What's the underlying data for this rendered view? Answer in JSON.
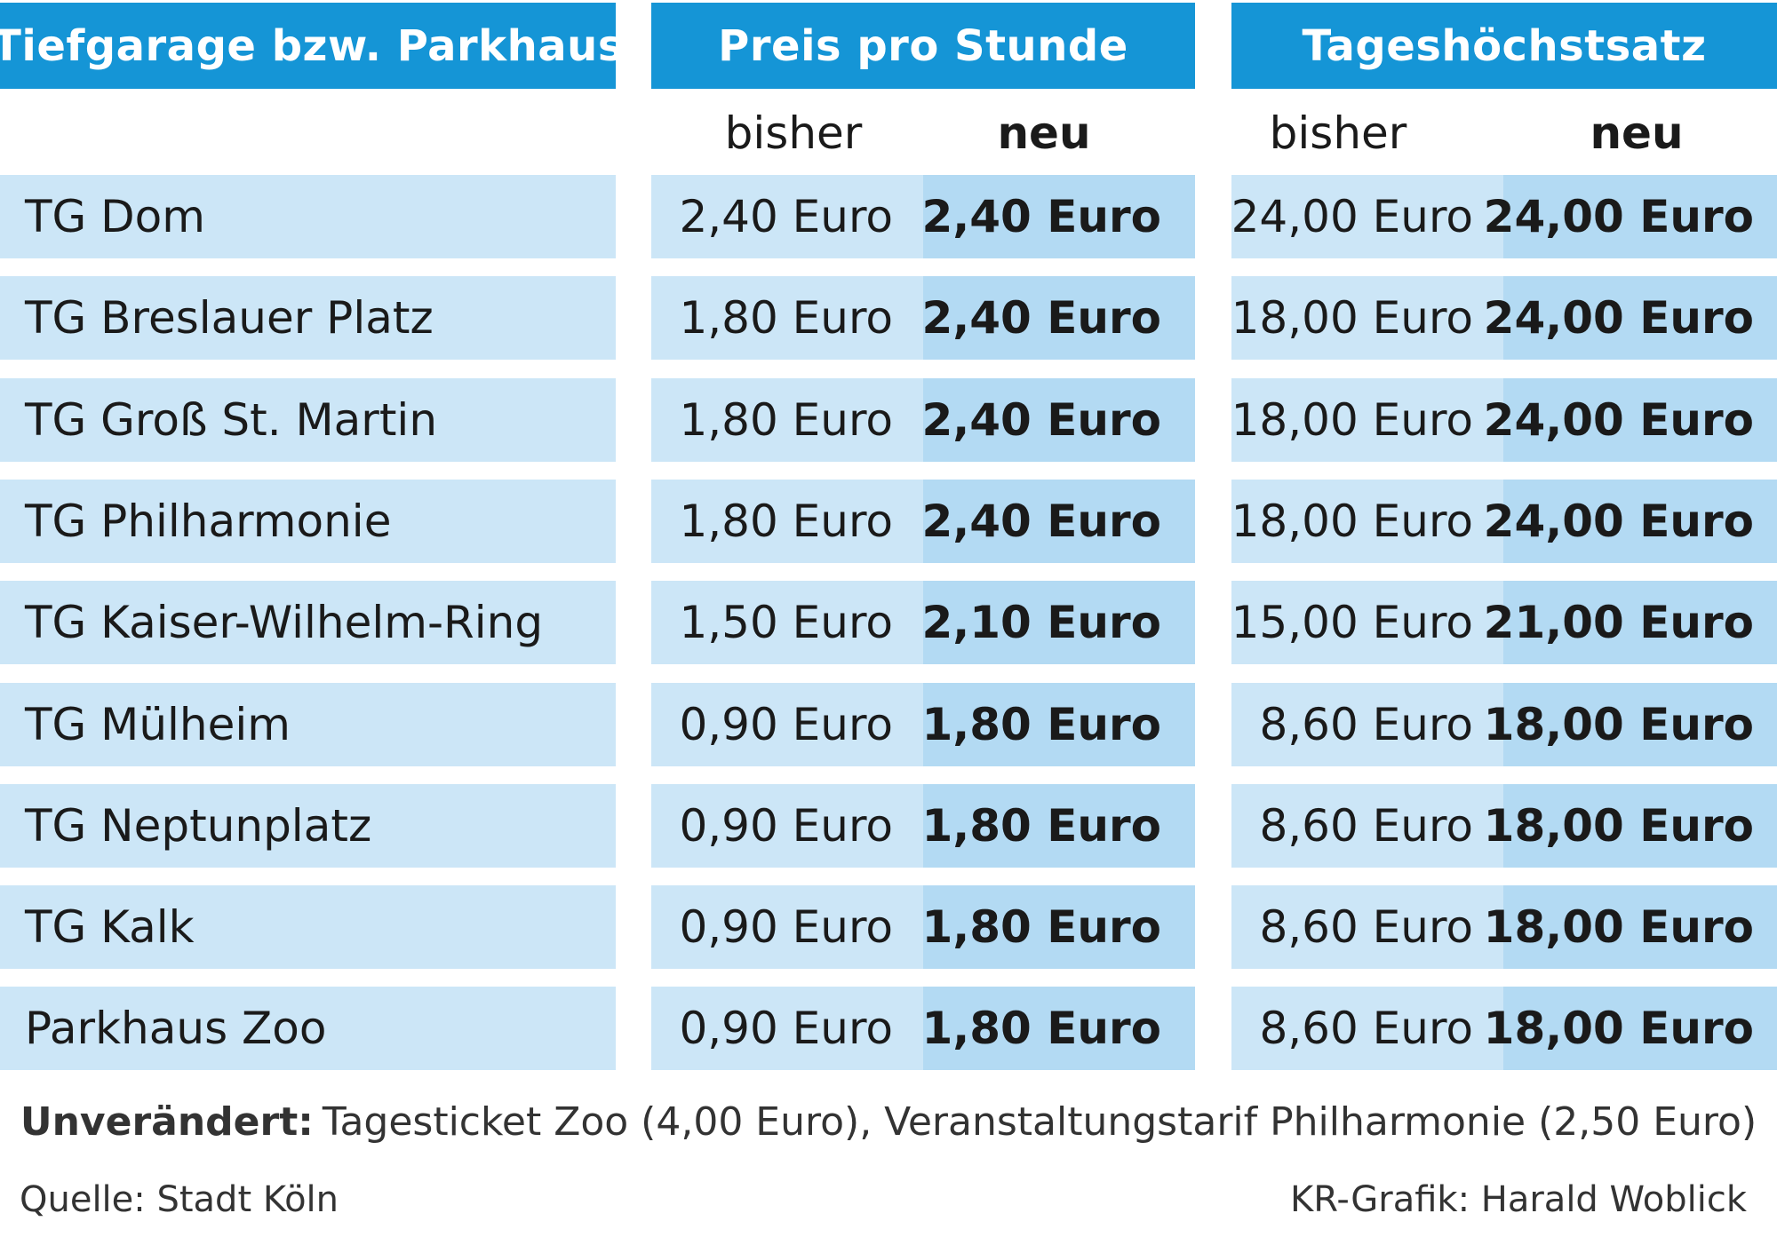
{
  "colors": {
    "header_bg": "#1595d6",
    "row_light": "#cce6f7",
    "row_dark": "#b3daf3"
  },
  "chart_data": {
    "type": "table",
    "columns": {
      "name": "Tiefgarage bzw. Parkhaus",
      "hourly": "Preis pro Stunde",
      "daily": "Tageshöchstsatz",
      "old": "bisher",
      "new": "neu"
    },
    "rows": [
      {
        "name": "TG Dom",
        "hourly_old": "2,40 Euro",
        "hourly_new": "2,40 Euro",
        "daily_old": "24,00 Euro",
        "daily_new": "24,00 Euro"
      },
      {
        "name": "TG Breslauer Platz",
        "hourly_old": "1,80 Euro",
        "hourly_new": "2,40 Euro",
        "daily_old": "18,00 Euro",
        "daily_new": "24,00 Euro"
      },
      {
        "name": "TG Groß St. Martin",
        "hourly_old": "1,80 Euro",
        "hourly_new": "2,40 Euro",
        "daily_old": "18,00 Euro",
        "daily_new": "24,00 Euro"
      },
      {
        "name": "TG Philharmonie",
        "hourly_old": "1,80 Euro",
        "hourly_new": "2,40 Euro",
        "daily_old": "18,00 Euro",
        "daily_new": "24,00 Euro"
      },
      {
        "name": "TG Kaiser-Wilhelm-Ring",
        "hourly_old": "1,50 Euro",
        "hourly_new": "2,10 Euro",
        "daily_old": "15,00 Euro",
        "daily_new": "21,00 Euro"
      },
      {
        "name": "TG Mülheim",
        "hourly_old": "0,90 Euro",
        "hourly_new": "1,80 Euro",
        "daily_old": "8,60 Euro",
        "daily_new": "18,00 Euro"
      },
      {
        "name": "TG Neptunplatz",
        "hourly_old": "0,90 Euro",
        "hourly_new": "1,80 Euro",
        "daily_old": "8,60 Euro",
        "daily_new": "18,00 Euro"
      },
      {
        "name": "TG Kalk",
        "hourly_old": "0,90 Euro",
        "hourly_new": "1,80 Euro",
        "daily_old": "8,60 Euro",
        "daily_new": "18,00 Euro"
      },
      {
        "name": "Parkhaus Zoo",
        "hourly_old": "0,90 Euro",
        "hourly_new": "1,80 Euro",
        "daily_old": "8,60 Euro",
        "daily_new": "18,00 Euro"
      }
    ]
  },
  "note": {
    "label": "Unverändert:",
    "text": "Tagesticket Zoo (4,00 Euro), Veranstaltungstarif Philharmonie (2,50 Euro)"
  },
  "footer": {
    "source": "Quelle: Stadt Köln",
    "credit": "KR-Grafik: Harald Woblick"
  }
}
